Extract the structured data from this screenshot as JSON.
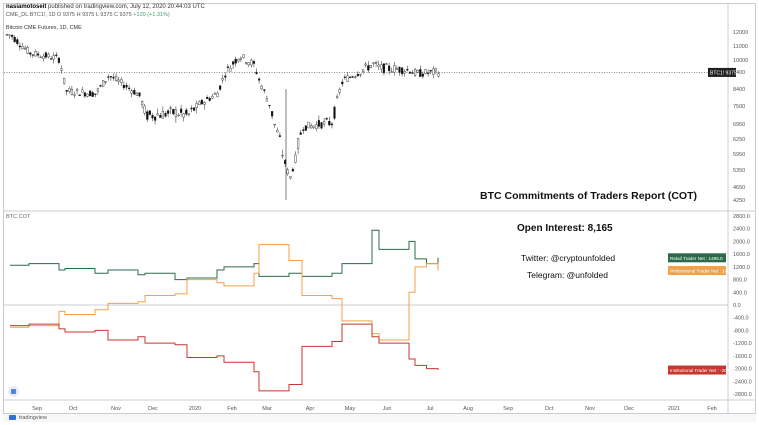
{
  "header": {
    "author": "nasiamotoseit",
    "published": "published on tradingview.com, July 12, 2020 20:44:03 UTC",
    "symbol": "CME_DL:BTC1!, 1D",
    "ohlc": "O 9375  H 9375  L 9375  C 9375",
    "change": "+120 (+1.31%)",
    "chart_title": "Bitcoin CME Futures, 1D, CME"
  },
  "overlay": {
    "title": "BTC Commitments of Traders Report (COT)",
    "open_interest": "Open Interest: 8,165",
    "twitter": "Twitter: @cryptounfolded",
    "telegram": "Telegram: @unfolded"
  },
  "footer": {
    "brand": "tradingview"
  },
  "chart_data": [
    {
      "type": "candlestick",
      "title": "Bitcoin CME Futures, 1D, CME",
      "x_ticks": [
        "Sep",
        "Oct",
        "Nov",
        "Dec",
        "2020",
        "Feb",
        "Mar",
        "Apr",
        "May",
        "Jun",
        "Jul",
        "Aug",
        "Sep",
        "Oct",
        "Nov",
        "Dec",
        "2021",
        "Feb"
      ],
      "y_ticks": [
        12000,
        11000,
        10000,
        9400,
        8400,
        7500,
        6950,
        6250,
        5950,
        5350,
        4650,
        4250
      ],
      "y_tick_labels": [
        "12000",
        "11000",
        "10000",
        "9400",
        "8400",
        "7500",
        "6950",
        "6250",
        "5950",
        "5350",
        "4650",
        "4250"
      ],
      "last_price_label": "BTC1! 9375",
      "last_price": 9375,
      "approx_close_path": [
        {
          "x": "Aug",
          "y": 11800
        },
        {
          "x": "Sep",
          "y": 10500
        },
        {
          "x": "Sep",
          "y": 10100
        },
        {
          "x": "Oct",
          "y": 8300
        },
        {
          "x": "Oct",
          "y": 8150
        },
        {
          "x": "Nov",
          "y": 9200
        },
        {
          "x": "Nov",
          "y": 8100
        },
        {
          "x": "Dec",
          "y": 7200
        },
        {
          "x": "Dec",
          "y": 7300
        },
        {
          "x": "2020",
          "y": 7200
        },
        {
          "x": "2020",
          "y": 8200
        },
        {
          "x": "Feb",
          "y": 9300
        },
        {
          "x": "Feb",
          "y": 10300
        },
        {
          "x": "Feb",
          "y": 9700
        },
        {
          "x": "Mar",
          "y": 8800
        },
        {
          "x": "Mar",
          "y": 5000
        },
        {
          "x": "Apr",
          "y": 6800
        },
        {
          "x": "Apr",
          "y": 7000
        },
        {
          "x": "May",
          "y": 8900
        },
        {
          "x": "May",
          "y": 9800
        },
        {
          "x": "Jun",
          "y": 9600
        },
        {
          "x": "Jun",
          "y": 9500
        },
        {
          "x": "Jul",
          "y": 9300
        },
        {
          "x": "Jul",
          "y": 9375
        }
      ]
    },
    {
      "type": "line",
      "title": "BTC COT",
      "x_ticks": [
        "Sep",
        "Oct",
        "Nov",
        "Dec",
        "2020",
        "Feb",
        "Mar",
        "Apr",
        "May",
        "Jun",
        "Jul",
        "Aug",
        "Sep",
        "Oct",
        "Nov",
        "Dec",
        "2021",
        "Feb"
      ],
      "y_ticks": [
        2800,
        2400,
        2000,
        1600,
        1200,
        800,
        400,
        0,
        -400,
        -800,
        -1200,
        -1600,
        -2000,
        -2400,
        -2800
      ],
      "y_tick_labels": [
        "2800.0",
        "2400.0",
        "2000.0",
        "1600.0",
        "1200.0",
        "800.0",
        "400.0",
        "0.0",
        "-400.0",
        "-800.0",
        "-1200.0",
        "-1600.0",
        "-2000.0",
        "-2400.0",
        "-2800.0"
      ],
      "zero_line": 0,
      "series": [
        {
          "name": "Retail Trader Net",
          "label": "Retail Trader Net : 1485.0",
          "last": 1485,
          "color": "#2c6b4a",
          "points": [
            {
              "x": "Aug",
              "y": 1250
            },
            {
              "x": "Sep",
              "y": 1300
            },
            {
              "x": "Sep",
              "y": 1100
            },
            {
              "x": "Oct",
              "y": 1150
            },
            {
              "x": "Oct",
              "y": 1000
            },
            {
              "x": "Nov",
              "y": 1100
            },
            {
              "x": "Nov",
              "y": 950
            },
            {
              "x": "Dec",
              "y": 1000
            },
            {
              "x": "Dec",
              "y": 800
            },
            {
              "x": "2020",
              "y": 850
            },
            {
              "x": "2020",
              "y": 1100
            },
            {
              "x": "Feb",
              "y": 1200
            },
            {
              "x": "Feb",
              "y": 1300
            },
            {
              "x": "Mar",
              "y": 900
            },
            {
              "x": "Mar",
              "y": 1000
            },
            {
              "x": "Apr",
              "y": 900
            },
            {
              "x": "Apr",
              "y": 1000
            },
            {
              "x": "May",
              "y": 1300
            },
            {
              "x": "May",
              "y": 2350
            },
            {
              "x": "Jun",
              "y": 1750
            },
            {
              "x": "Jun",
              "y": 2000
            },
            {
              "x": "Jul",
              "y": 1450
            },
            {
              "x": "Jul",
              "y": 1300
            },
            {
              "x": "Jul",
              "y": 1485
            }
          ]
        },
        {
          "name": "Professional Trader Net",
          "label": "Professional Trader Net : 1084.0",
          "last": 1084,
          "color": "#f0a14a",
          "points": [
            {
              "x": "Aug",
              "y": -700
            },
            {
              "x": "Sep",
              "y": -650
            },
            {
              "x": "Sep",
              "y": -200
            },
            {
              "x": "Oct",
              "y": -300
            },
            {
              "x": "Oct",
              "y": -150
            },
            {
              "x": "Nov",
              "y": 50
            },
            {
              "x": "Nov",
              "y": 100
            },
            {
              "x": "Dec",
              "y": 300
            },
            {
              "x": "Dec",
              "y": 350
            },
            {
              "x": "2020",
              "y": 800
            },
            {
              "x": "2020",
              "y": 700
            },
            {
              "x": "Feb",
              "y": 600
            },
            {
              "x": "Feb",
              "y": 1000
            },
            {
              "x": "Mar",
              "y": 1900
            },
            {
              "x": "Mar",
              "y": 1400
            },
            {
              "x": "Apr",
              "y": 300
            },
            {
              "x": "Apr",
              "y": 200
            },
            {
              "x": "May",
              "y": -500
            },
            {
              "x": "May",
              "y": -900
            },
            {
              "x": "Jun",
              "y": -1100
            },
            {
              "x": "Jun",
              "y": 400
            },
            {
              "x": "Jul",
              "y": 1200
            },
            {
              "x": "Jul",
              "y": 1300
            },
            {
              "x": "Jul",
              "y": 1084
            }
          ]
        },
        {
          "name": "Institutional Trader Net",
          "label": "Institutional Trader Net : -2046.0",
          "last": -2046,
          "color": "#c7372f",
          "points": [
            {
              "x": "Aug",
              "y": -650
            },
            {
              "x": "Sep",
              "y": -600
            },
            {
              "x": "Sep",
              "y": -750
            },
            {
              "x": "Oct",
              "y": -850
            },
            {
              "x": "Oct",
              "y": -800
            },
            {
              "x": "Nov",
              "y": -1100
            },
            {
              "x": "Nov",
              "y": -1000
            },
            {
              "x": "Dec",
              "y": -1200
            },
            {
              "x": "Dec",
              "y": -1250
            },
            {
              "x": "2020",
              "y": -1650
            },
            {
              "x": "2020",
              "y": -1600
            },
            {
              "x": "Feb",
              "y": -1800
            },
            {
              "x": "Feb",
              "y": -2100
            },
            {
              "x": "Mar",
              "y": -2700
            },
            {
              "x": "Mar",
              "y": -2500
            },
            {
              "x": "Apr",
              "y": -1300
            },
            {
              "x": "Apr",
              "y": -1150
            },
            {
              "x": "May",
              "y": -600
            },
            {
              "x": "May",
              "y": -1000
            },
            {
              "x": "Jun",
              "y": -1200
            },
            {
              "x": "Jun",
              "y": -1700
            },
            {
              "x": "Jul",
              "y": -1900
            },
            {
              "x": "Jul",
              "y": -2000
            },
            {
              "x": "Jul",
              "y": -2046
            }
          ]
        }
      ]
    }
  ]
}
